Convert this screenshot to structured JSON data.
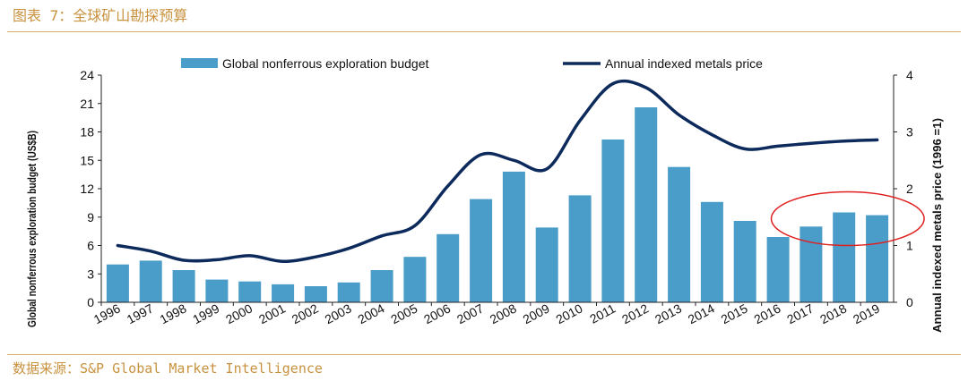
{
  "header": {
    "figure_title": "图表 7：全球矿山勘探预算"
  },
  "footer": {
    "source": "数据来源：S&P Global Market Intelligence"
  },
  "colors": {
    "bar": "#4a9cc9",
    "line": "#0d2a5c",
    "highlight": "#e02020",
    "accent": "#c9923f"
  },
  "chart_data": {
    "type": "bar",
    "categories": [
      "1996",
      "1997",
      "1998",
      "1999",
      "2000",
      "2001",
      "2002",
      "2003",
      "2004",
      "2005",
      "2006",
      "2007",
      "2008",
      "2009",
      "2010",
      "2011",
      "2012",
      "2013",
      "2014",
      "2015",
      "2016",
      "2017",
      "2018",
      "2019"
    ],
    "series": [
      {
        "name": "Global nonferrous exploration budget",
        "type": "bar",
        "axis": "left",
        "values": [
          4.0,
          4.4,
          3.4,
          2.4,
          2.2,
          1.9,
          1.7,
          2.1,
          3.4,
          4.8,
          7.2,
          10.9,
          13.8,
          7.9,
          11.3,
          17.2,
          20.6,
          14.3,
          10.6,
          8.6,
          6.9,
          8.0,
          9.5,
          9.2
        ]
      },
      {
        "name": "Annual indexed metals price",
        "type": "line",
        "axis": "right",
        "values": [
          1.0,
          0.9,
          0.74,
          0.75,
          0.82,
          0.72,
          0.8,
          0.95,
          1.17,
          1.35,
          2.05,
          2.6,
          2.5,
          2.35,
          3.2,
          3.85,
          3.78,
          3.3,
          2.95,
          2.7,
          2.75,
          2.8,
          2.84,
          2.86
        ]
      }
    ],
    "ylabel": "Global nonferrous exploration budget (US$B)",
    "ylim": [
      0,
      24
    ],
    "yticks": [
      "0",
      "3",
      "6",
      "9",
      "12",
      "15",
      "18",
      "21",
      "24"
    ],
    "y2label": "Annual indexed metals price (1996 =1)",
    "y2lim": [
      0,
      4
    ],
    "y2ticks": [
      "0",
      "1",
      "2",
      "3",
      "4"
    ],
    "legend_position": "top-center",
    "grid": false,
    "annotation": {
      "type": "ellipse",
      "description": "red ellipse highlighting 2017-2019 bars",
      "categories": [
        "2017",
        "2018",
        "2019"
      ]
    }
  }
}
